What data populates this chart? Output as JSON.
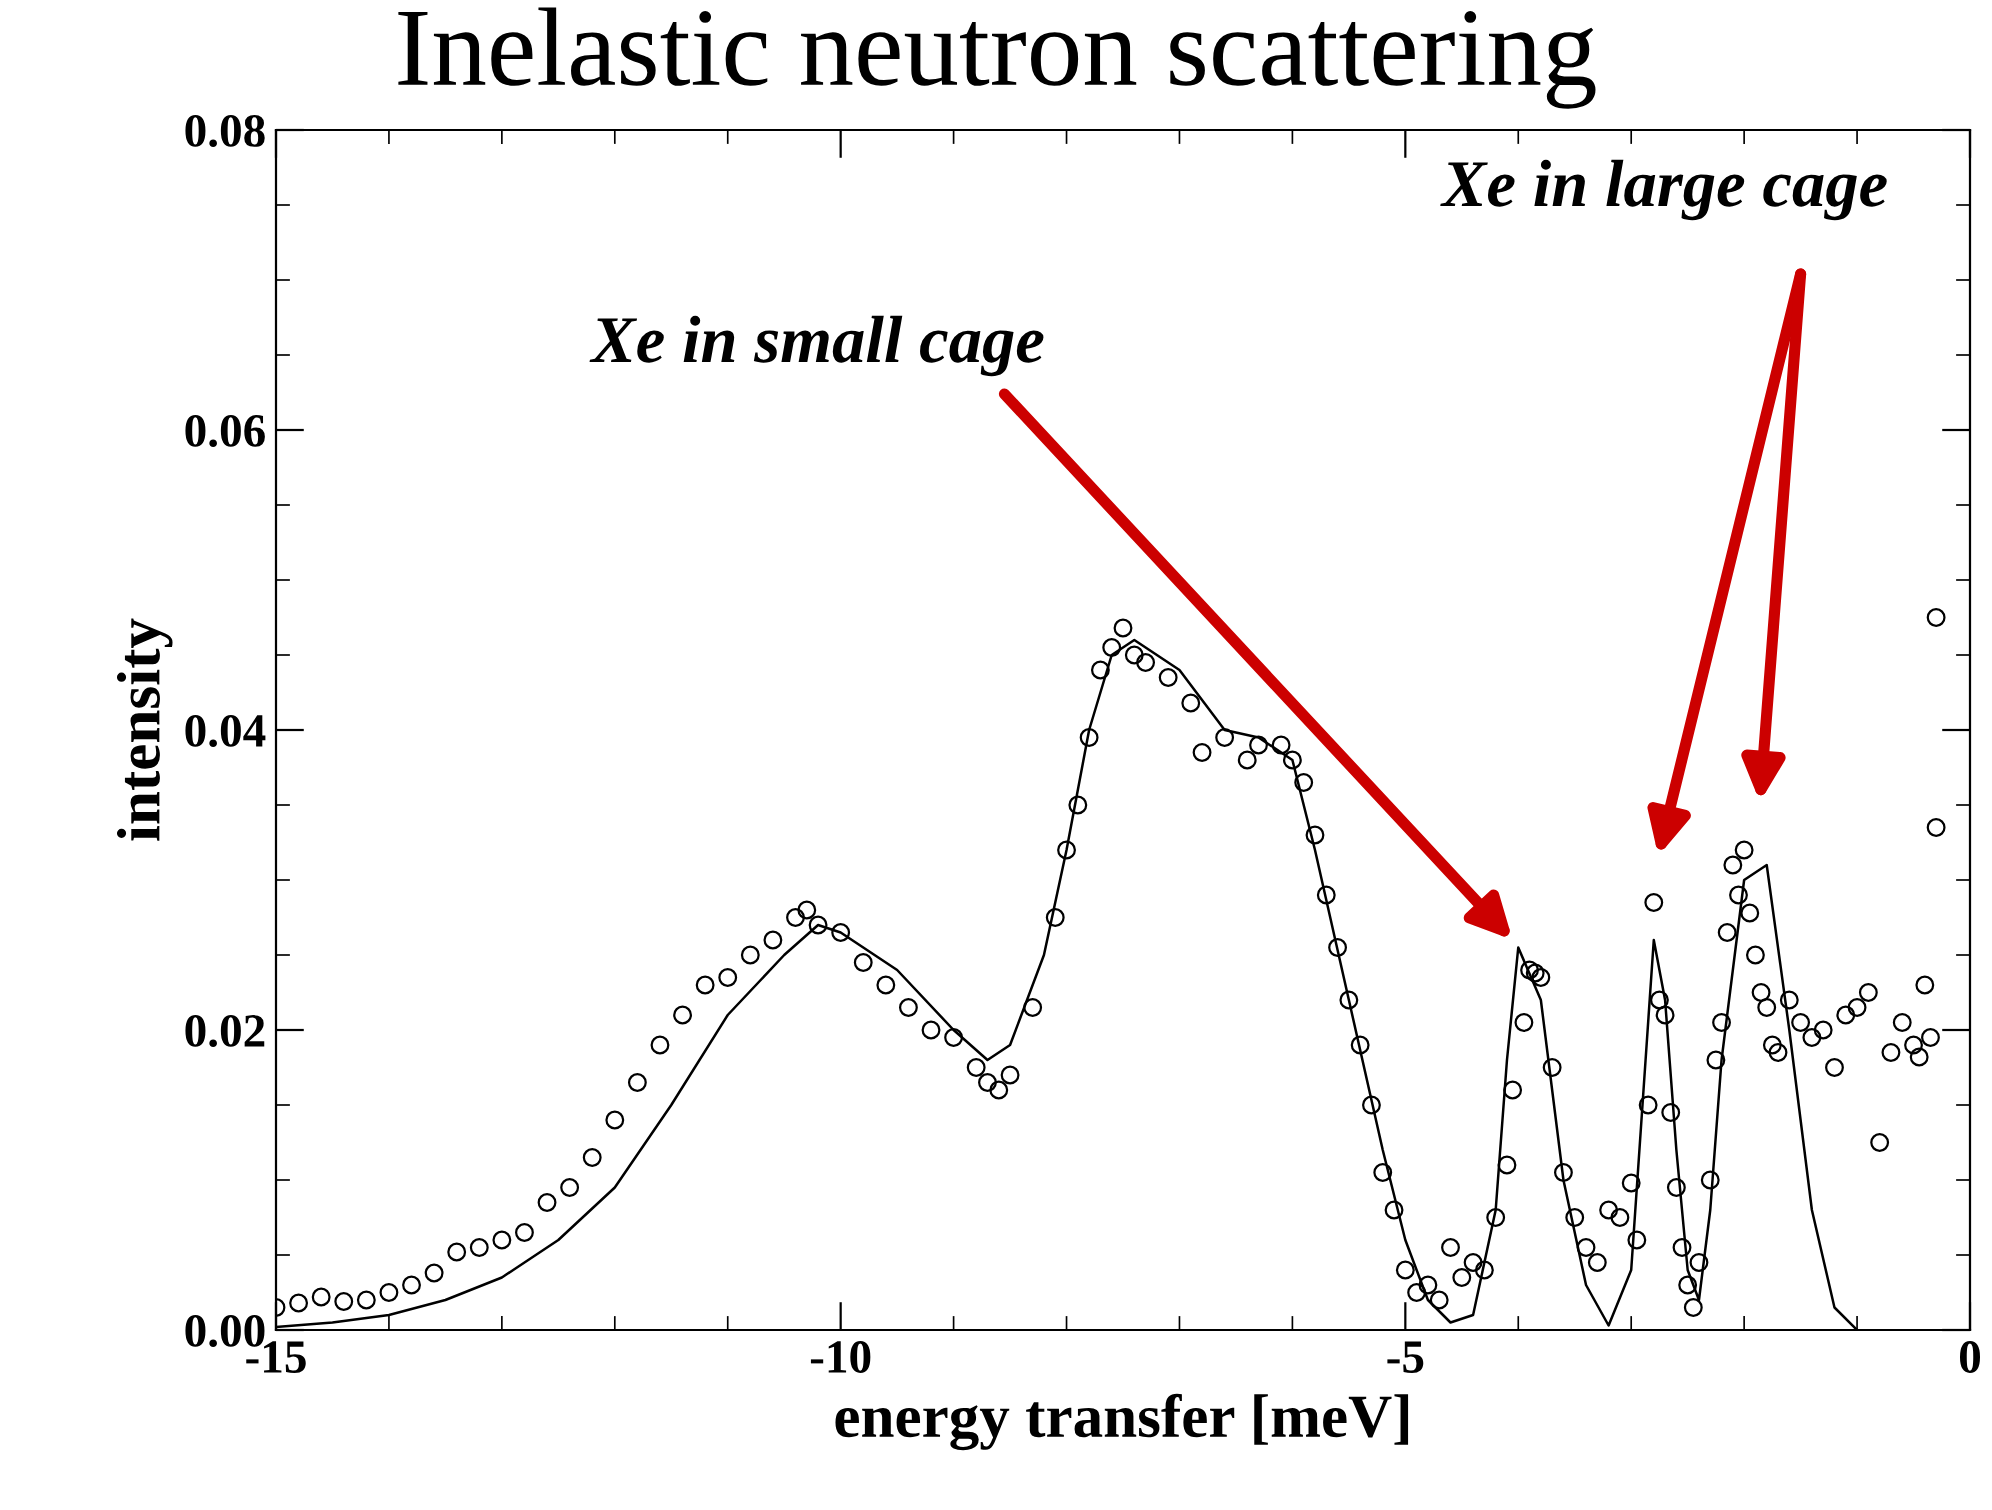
{
  "chart_data": {
    "type": "scatter",
    "title": "Inelastic neutron scattering",
    "xlabel": "energy transfer [meV]",
    "ylabel": "intensity",
    "xlim": [
      -15,
      0
    ],
    "xticks": [
      {
        "value": -15,
        "label": "-15"
      },
      {
        "value": -10,
        "label": "-10"
      },
      {
        "value": -5,
        "label": "-5"
      },
      {
        "value": 0,
        "label": "0"
      }
    ],
    "ylim": [
      0,
      0.08
    ],
    "yticks": [
      {
        "value": 0,
        "label": "0.00"
      },
      {
        "value": 0.02,
        "label": "0.02"
      },
      {
        "value": 0.04,
        "label": "0.04"
      },
      {
        "value": 0.06,
        "label": "0.06"
      },
      {
        "value": 0.08,
        "label": "0.08"
      }
    ],
    "grid": false,
    "legend": false,
    "series": [
      {
        "marker": "circle",
        "color": "#000000",
        "x": [
          -15,
          -14.8,
          -14.6,
          -14.4,
          -14.2,
          -14,
          -13.8,
          -13.6,
          -13.4,
          -13.2,
          -13,
          -12.8,
          -12.6,
          -12.4,
          -12.2,
          -12,
          -11.8,
          -11.6,
          -11.4,
          -11.2,
          -11,
          -10.8,
          -10.6,
          -10.4,
          -10.3,
          -10.2,
          -10,
          -9.8,
          -9.6,
          -9.4,
          -9.2,
          -9,
          -8.8,
          -8.7,
          -8.6,
          -8.5,
          -8.3,
          -8.1,
          -8,
          -7.9,
          -7.8,
          -7.7,
          -7.6,
          -7.5,
          -7.4,
          -7.3,
          -7.1,
          -6.9,
          -6.8,
          -6.6,
          -6.4,
          -6.3,
          -6.1,
          -6,
          -5.9,
          -5.8,
          -5.7,
          -5.6,
          -5.5,
          -5.4,
          -5.3,
          -5.2,
          -5.1,
          -5,
          -4.9,
          -4.8,
          -4.7,
          -4.6,
          -4.5,
          -4.4,
          -4.3,
          -4.2,
          -4.1,
          -4.05,
          -3.95,
          -3.9,
          -3.85,
          -3.8,
          -3.7,
          -3.6,
          -3.5,
          -3.4,
          -3.3,
          -3.2,
          -3.1,
          -3,
          -2.95,
          -2.85,
          -2.8,
          -2.75,
          -2.7,
          -2.65,
          -2.6,
          -2.55,
          -2.5,
          -2.45,
          -2.4,
          -2.3,
          -2.25,
          -2.2,
          -2.15,
          -2.1,
          -2.05,
          -2,
          -1.95,
          -1.9,
          -1.85,
          -1.8,
          -1.75,
          -1.7,
          -1.6,
          -1.5,
          -1.4,
          -1.3,
          -1.2,
          -1.1,
          -1,
          -0.9,
          -0.8,
          -0.7,
          -0.6,
          -0.5,
          -0.45,
          -0.4,
          -0.35,
          -0.3,
          -0.3
        ],
        "values": [
          0.0015,
          0.0018,
          0.0022,
          0.0019,
          0.002,
          0.0025,
          0.003,
          0.0038,
          0.0052,
          0.0055,
          0.006,
          0.0065,
          0.0085,
          0.0095,
          0.0115,
          0.014,
          0.0165,
          0.019,
          0.021,
          0.023,
          0.0235,
          0.025,
          0.026,
          0.0275,
          0.028,
          0.027,
          0.0265,
          0.0245,
          0.023,
          0.0215,
          0.02,
          0.0195,
          0.0175,
          0.0165,
          0.016,
          0.017,
          0.0215,
          0.0275,
          0.032,
          0.035,
          0.0395,
          0.044,
          0.0455,
          0.0468,
          0.045,
          0.0445,
          0.0435,
          0.0418,
          0.0385,
          0.0395,
          0.038,
          0.039,
          0.039,
          0.038,
          0.0365,
          0.033,
          0.029,
          0.0255,
          0.022,
          0.019,
          0.015,
          0.0105,
          0.008,
          0.004,
          0.0025,
          0.003,
          0.002,
          0.0055,
          0.0035,
          0.0045,
          0.004,
          0.0075,
          0.011,
          0.016,
          0.0205,
          0.024,
          0.0238,
          0.0235,
          0.0175,
          0.0105,
          0.0075,
          0.0055,
          0.0045,
          0.008,
          0.0075,
          0.0098,
          0.006,
          0.015,
          0.0285,
          0.022,
          0.021,
          0.0145,
          0.0095,
          0.0055,
          0.003,
          0.0015,
          0.0045,
          0.01,
          0.018,
          0.0205,
          0.0265,
          0.031,
          0.029,
          0.032,
          0.0278,
          0.025,
          0.0225,
          0.0215,
          0.019,
          0.0185,
          0.022,
          0.0205,
          0.0195,
          0.02,
          0.0175,
          0.021,
          0.0215,
          0.0225,
          0.0125,
          0.0185,
          0.0205,
          0.019,
          0.0182,
          0.023,
          0.0195,
          0.0475,
          0.0335
        ]
      },
      {
        "type": "line",
        "line_style": "solid",
        "color": "#000000",
        "x": [
          -15,
          -14.5,
          -14,
          -13.5,
          -13,
          -12.5,
          -12,
          -11.5,
          -11,
          -10.5,
          -10.2,
          -10,
          -9.5,
          -9,
          -8.7,
          -8.5,
          -8.2,
          -8,
          -7.8,
          -7.6,
          -7.4,
          -7,
          -6.6,
          -6.3,
          -6,
          -5.8,
          -5.5,
          -5.2,
          -5,
          -4.8,
          -4.6,
          -4.4,
          -4.2,
          -4.1,
          -4,
          -3.8,
          -3.6,
          -3.4,
          -3.2,
          -3,
          -2.9,
          -2.8,
          -2.7,
          -2.6,
          -2.5,
          -2.4,
          -2.3,
          -2.2,
          -2,
          -1.8,
          -1.6,
          -1.4,
          -1.2,
          -1
        ],
        "values": [
          0.0002,
          0.0005,
          0.001,
          0.002,
          0.0035,
          0.006,
          0.0095,
          0.015,
          0.021,
          0.025,
          0.027,
          0.0265,
          0.024,
          0.02,
          0.018,
          0.019,
          0.025,
          0.032,
          0.04,
          0.045,
          0.046,
          0.044,
          0.04,
          0.0395,
          0.038,
          0.032,
          0.022,
          0.012,
          0.006,
          0.002,
          0.0005,
          0.001,
          0.008,
          0.018,
          0.0255,
          0.022,
          0.01,
          0.003,
          0.0003,
          0.004,
          0.015,
          0.026,
          0.022,
          0.012,
          0.004,
          0.002,
          0.008,
          0.018,
          0.03,
          0.031,
          0.02,
          0.008,
          0.0015,
          0
        ]
      }
    ],
    "annotations": [
      {
        "text": "Xe in small cage",
        "x": -4.05,
        "y": 0.026
      },
      "Xe in large cage"
    ]
  }
}
